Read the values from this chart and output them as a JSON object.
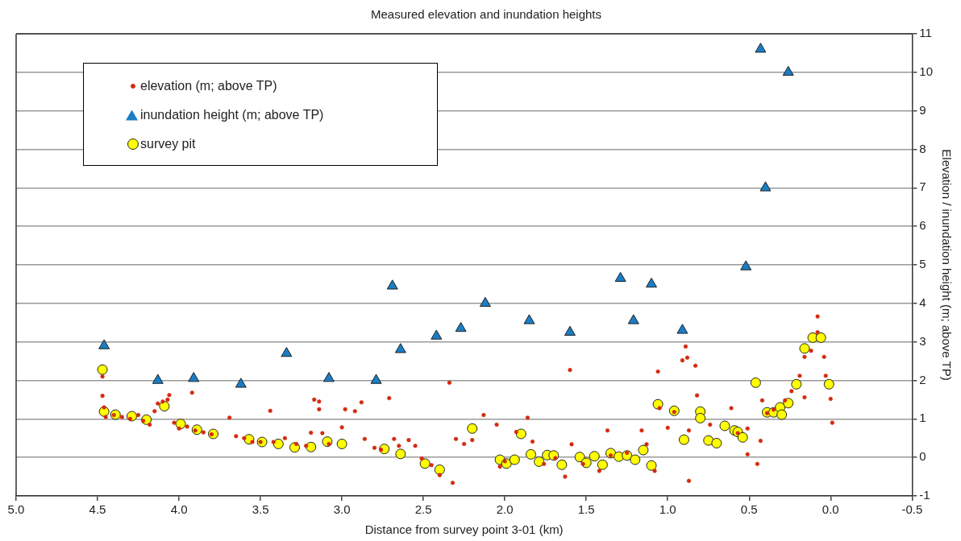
{
  "chart_data": {
    "type": "scatter",
    "title": "Measured elevation and inundation heights",
    "xlabel": "Distance from survey point 3-01 (km)",
    "ylabel": "Elevation / inundation height (m; above TP)",
    "xlim": [
      5.0,
      -0.5
    ],
    "xticks": [
      {
        "value": 5,
        "label": "5.0"
      },
      4.5,
      {
        "value": 4,
        "label": "4.0"
      },
      3.5,
      {
        "value": 3,
        "label": "3.0"
      },
      2.5,
      {
        "value": 2,
        "label": "2.0"
      },
      1.5,
      {
        "value": 1,
        "label": "1.0"
      },
      0.5,
      {
        "value": 0,
        "label": "0.0"
      },
      -0.5
    ],
    "ylim": [
      -1,
      11
    ],
    "yticks": [
      -1,
      0,
      1,
      2,
      3,
      4,
      5,
      6,
      7,
      8,
      9,
      10,
      11
    ],
    "grid": "y",
    "legend": "top left",
    "series": [
      {
        "name": "elevation (m; above TP)",
        "color": "#d42a10",
        "marker": "circle",
        "x": [
          4.47,
          4.47,
          4.46,
          4.45,
          4.4,
          4.35,
          4.3,
          4.25,
          4.22,
          4.18,
          4.15,
          4.13,
          4.1,
          4.07,
          4.06,
          4.03,
          4.0,
          3.95,
          3.92,
          3.9,
          3.85,
          3.8,
          3.69,
          3.65,
          3.6,
          3.55,
          3.5,
          3.44,
          3.42,
          3.35,
          3.28,
          3.22,
          3.19,
          3.17,
          3.14,
          3.14,
          3.12,
          3.08,
          3.0,
          2.98,
          2.92,
          2.88,
          2.86,
          2.8,
          2.76,
          2.71,
          2.68,
          2.65,
          2.59,
          2.55,
          2.51,
          2.45,
          2.4,
          2.34,
          2.32,
          2.3,
          2.25,
          2.2,
          2.13,
          2.05,
          2.03,
          2.0,
          1.93,
          1.86,
          1.83,
          1.76,
          1.69,
          1.63,
          1.6,
          1.59,
          1.52,
          1.42,
          1.37,
          1.35,
          1.25,
          1.16,
          1.13,
          1.08,
          1.06,
          1.05,
          1.0,
          0.96,
          0.91,
          0.89,
          0.88,
          0.87,
          0.87,
          0.83,
          0.82,
          0.74,
          0.61,
          0.57,
          0.51,
          0.51,
          0.45,
          0.43,
          0.42,
          0.39,
          0.35,
          0.28,
          0.24,
          0.19,
          0.16,
          0.16,
          0.12,
          0.08,
          0.08,
          0.04,
          0.03,
          0.0,
          -0.01
        ],
        "values": [
          2.1,
          1.6,
          1.3,
          1.05,
          1.1,
          1.05,
          1.0,
          1.1,
          0.95,
          0.85,
          1.2,
          1.4,
          1.45,
          1.5,
          1.62,
          0.9,
          0.75,
          0.8,
          1.68,
          0.7,
          0.65,
          0.6,
          1.03,
          0.55,
          0.5,
          0.4,
          0.4,
          1.21,
          0.4,
          0.5,
          0.35,
          0.3,
          0.64,
          1.5,
          1.45,
          1.25,
          0.63,
          0.35,
          0.78,
          1.25,
          1.2,
          1.43,
          0.48,
          0.25,
          0.2,
          1.54,
          0.48,
          0.3,
          0.45,
          0.3,
          -0.03,
          -0.2,
          -0.46,
          1.94,
          -0.66,
          0.48,
          0.35,
          0.45,
          1.1,
          0.85,
          -0.24,
          -0.1,
          0.66,
          1.03,
          0.41,
          -0.17,
          -0.02,
          -0.5,
          2.27,
          0.34,
          -0.17,
          -0.35,
          0.7,
          0.05,
          0.12,
          0.7,
          0.34,
          -0.35,
          2.23,
          1.28,
          0.77,
          1.18,
          2.52,
          2.88,
          2.59,
          0.7,
          -0.61,
          2.38,
          1.61,
          0.85,
          1.28,
          0.63,
          0.08,
          0.75,
          -0.17,
          0.43,
          1.48,
          1.15,
          1.24,
          1.48,
          1.72,
          2.12,
          1.56,
          2.61,
          2.77,
          3.66,
          3.25,
          2.61,
          2.12,
          1.52,
          0.9
        ]
      },
      {
        "name": "inundation height (m; above TP)",
        "color": "#1a7dc4",
        "marker": "triangle",
        "x": [
          4.46,
          4.13,
          3.91,
          3.62,
          3.34,
          3.08,
          2.79,
          2.69,
          2.64,
          2.42,
          2.27,
          2.12,
          1.85,
          1.6,
          1.29,
          1.21,
          1.1,
          0.91,
          0.52,
          0.43,
          0.4,
          0.26
        ],
        "values": [
          2.9,
          2.0,
          2.05,
          1.9,
          2.7,
          2.05,
          2.0,
          4.45,
          2.8,
          3.15,
          3.35,
          4.0,
          3.55,
          3.25,
          4.65,
          3.55,
          4.5,
          3.3,
          4.95,
          10.6,
          7.0,
          10.0
        ]
      },
      {
        "name": "survey pit",
        "color": "#ffff00",
        "marker": "circle",
        "x": [
          4.47,
          4.46,
          4.39,
          4.29,
          4.2,
          4.09,
          3.99,
          3.89,
          3.79,
          3.57,
          3.49,
          3.39,
          3.29,
          3.19,
          3.09,
          3.0,
          2.74,
          2.64,
          2.49,
          2.4,
          2.2,
          2.03,
          1.99,
          1.94,
          1.9,
          1.84,
          1.79,
          1.74,
          1.7,
          1.65,
          1.54,
          1.5,
          1.45,
          1.4,
          1.35,
          1.3,
          1.25,
          1.2,
          1.15,
          1.1,
          1.06,
          0.96,
          0.9,
          0.8,
          0.8,
          0.75,
          0.7,
          0.65,
          0.59,
          0.57,
          0.54,
          0.46,
          0.39,
          0.35,
          0.31,
          0.3,
          0.26,
          0.21,
          0.16,
          0.11,
          0.06,
          0.01
        ],
        "values": [
          2.28,
          1.19,
          1.11,
          1.07,
          0.98,
          1.33,
          0.87,
          0.72,
          0.61,
          0.47,
          0.4,
          0.35,
          0.26,
          0.27,
          0.41,
          0.35,
          0.22,
          0.09,
          -0.16,
          -0.32,
          0.75,
          -0.06,
          -0.16,
          -0.06,
          0.61,
          0.08,
          -0.11,
          0.06,
          0.05,
          -0.19,
          0.01,
          -0.14,
          0.03,
          -0.19,
          0.11,
          0.02,
          0.05,
          -0.06,
          0.19,
          -0.21,
          1.38,
          1.21,
          0.46,
          1.19,
          1.02,
          0.44,
          0.37,
          0.82,
          0.7,
          0.66,
          0.52,
          1.94,
          1.17,
          1.17,
          1.3,
          1.11,
          1.41,
          1.9,
          2.83,
          3.11,
          3.11,
          1.9
        ]
      }
    ]
  }
}
